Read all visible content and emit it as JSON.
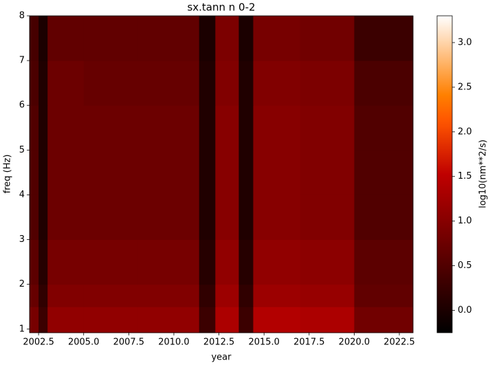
{
  "chart_data": {
    "type": "heatmap",
    "title": "sx.tann n 0-2",
    "xlabel": "year",
    "ylabel": "freq (Hz)",
    "cmap": "gist_heat",
    "x_edges": [
      2002.0,
      2002.5,
      2003.0,
      2005.0,
      2008.0,
      2011.4,
      2012.3,
      2013.6,
      2014.4,
      2017.0,
      2020.0,
      2023.26
    ],
    "y_edges": [
      0.92,
      1.5,
      2,
      3,
      4,
      5,
      6,
      7,
      8
    ],
    "z": [
      [
        0.85,
        0.3,
        1.1,
        1.1,
        1.1,
        0.3,
        1.35,
        0.3,
        1.4,
        1.35,
        0.8
      ],
      [
        0.7,
        0.2,
        0.95,
        0.95,
        0.95,
        0.2,
        1.2,
        0.2,
        1.2,
        1.15,
        0.65
      ],
      [
        0.6,
        0.1,
        0.85,
        0.85,
        0.85,
        0.1,
        1.1,
        0.1,
        1.1,
        1.05,
        0.6
      ],
      [
        0.5,
        0.05,
        0.75,
        0.75,
        0.75,
        0.05,
        1.0,
        0.05,
        1.0,
        0.95,
        0.5
      ],
      [
        0.5,
        0.05,
        0.75,
        0.75,
        0.75,
        0.05,
        1.0,
        0.05,
        1.0,
        0.95,
        0.5
      ],
      [
        0.5,
        0.05,
        0.75,
        0.75,
        0.75,
        0.05,
        1.0,
        0.05,
        1.0,
        0.95,
        0.5
      ],
      [
        0.45,
        0.05,
        0.75,
        0.7,
        0.7,
        0.05,
        0.95,
        0.05,
        0.95,
        0.9,
        0.45
      ],
      [
        0.4,
        0.0,
        0.65,
        0.65,
        0.65,
        0.0,
        0.9,
        0.0,
        0.85,
        0.8,
        0.3
      ]
    ],
    "xlim": [
      2002.0,
      2023.26
    ],
    "xticks": [
      2002.5,
      {
        "value": 2005,
        "label": "2005.0"
      },
      2007.5,
      {
        "value": 2010,
        "label": "2010.0"
      },
      2012.5,
      {
        "value": 2015,
        "label": "2015.0"
      },
      2017.5,
      {
        "value": 2020,
        "label": "2020.0"
      },
      2022.5
    ],
    "ylim": [
      0.92,
      8
    ],
    "yticks": [
      1,
      2,
      3,
      4,
      5,
      6,
      7,
      8
    ],
    "colorbar": {
      "label": "log10(nm**2/s)",
      "clim": [
        -0.25,
        3.3
      ],
      "ticks": [
        {
          "value": 0,
          "label": "0.0"
        },
        0.5,
        {
          "value": 1,
          "label": "1.0"
        },
        1.5,
        {
          "value": 2,
          "label": "2.0"
        },
        2.5,
        {
          "value": 3,
          "label": "3.0"
        }
      ]
    }
  }
}
